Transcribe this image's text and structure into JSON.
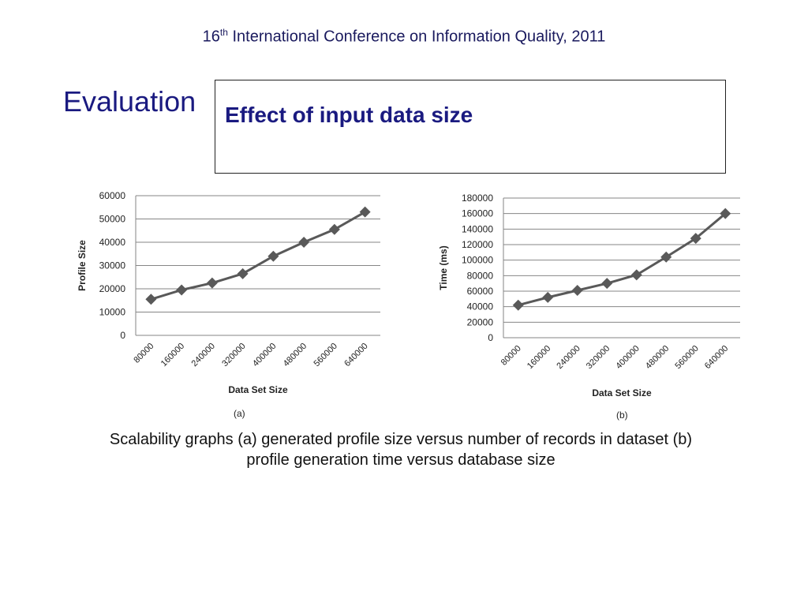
{
  "header": {
    "prefix": "16",
    "sup": "th",
    "text": "International Conference on Information Quality, 2011"
  },
  "section_title": "Evaluation",
  "box_title": "Effect of input data size",
  "subcaptions": {
    "a": "(a)",
    "b": "(b)"
  },
  "caption": "Scalability graphs (a) generated profile size versus number of records in dataset (b) profile generation time versus database size",
  "colors": {
    "series": "#595959",
    "grid": "#868686",
    "title": "#1a1a80"
  },
  "chart_data": [
    {
      "type": "line",
      "categories": [
        "80000",
        "160000",
        "240000",
        "320000",
        "400000",
        "480000",
        "560000",
        "640000"
      ],
      "series": [
        {
          "values": [
            15500,
            19500,
            22500,
            26500,
            34000,
            40000,
            45500,
            53000
          ]
        }
      ],
      "xlabel": "Data Set Size",
      "ylabel": "Profile Size",
      "ylim": [
        0,
        60000
      ],
      "yticks": [
        "0",
        "10000",
        "20000",
        "30000",
        "40000",
        "50000",
        "60000"
      ],
      "grid": true
    },
    {
      "type": "line",
      "categories": [
        "80000",
        "160000",
        "240000",
        "320000",
        "400000",
        "480000",
        "560000",
        "640000"
      ],
      "series": [
        {
          "values": [
            42000,
            52000,
            61000,
            70000,
            81000,
            104000,
            128000,
            160000
          ]
        }
      ],
      "xlabel": "Data Set Size",
      "ylabel": "Time (ms)",
      "ylim": [
        0,
        180000
      ],
      "yticks": [
        "0",
        "20000",
        "40000",
        "60000",
        "80000",
        "100000",
        "120000",
        "140000",
        "160000",
        "180000"
      ],
      "grid": true
    }
  ]
}
